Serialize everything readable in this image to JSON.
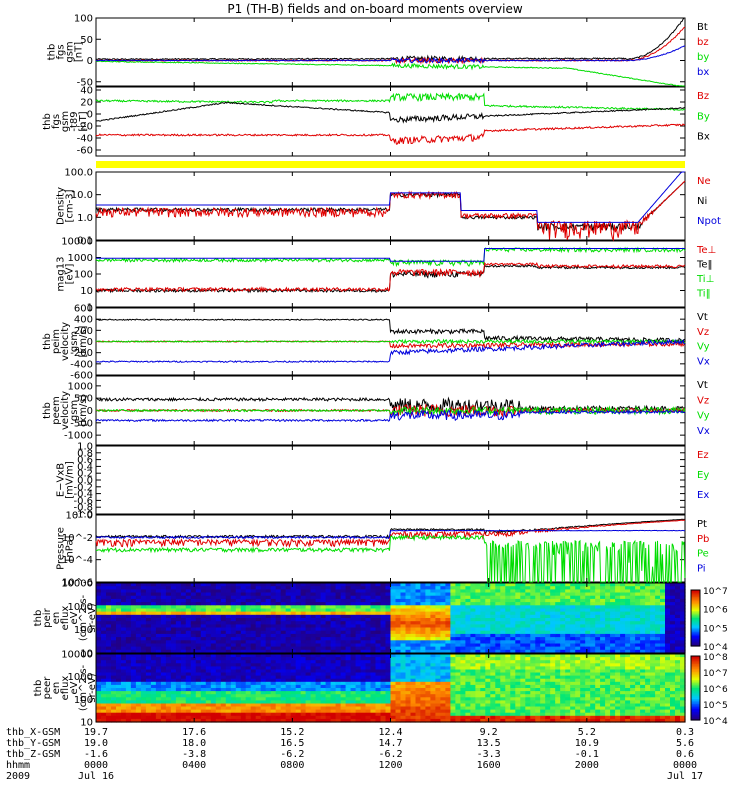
{
  "title": "P1 (TH-B) fields and on-board moments overview",
  "colors": {
    "black": "#000000",
    "red": "#e00000",
    "green": "#00dd00",
    "blue": "#0000dd",
    "yellow": "#ffff00"
  },
  "chart_data": [
    {
      "type": "line",
      "ylabel": [
        "thb",
        "fgs",
        "gsm",
        "[nT]"
      ],
      "ylim": [
        -60,
        100
      ],
      "ticks": [
        100,
        50,
        0,
        -50
      ],
      "legend": [
        {
          "name": "Bt",
          "color": "black"
        },
        {
          "name": "bz",
          "color": "red"
        },
        {
          "name": "by",
          "color": "green"
        },
        {
          "name": "bx",
          "color": "blue"
        }
      ]
    },
    {
      "type": "line",
      "ylabel": [
        "thb",
        "fgs",
        "gsm",
        "-t89",
        "[nT]"
      ],
      "ylim": [
        -70,
        45
      ],
      "ticks": [
        40,
        20,
        0,
        -20,
        -40,
        -60
      ],
      "legend": [
        {
          "name": "Bz",
          "color": "red"
        },
        {
          "name": "By",
          "color": "green"
        },
        {
          "name": "Bx",
          "color": "black"
        }
      ]
    },
    {
      "type": "line",
      "ylabel": [
        "Density",
        "[cm-3]"
      ],
      "ylim": [
        0.1,
        100
      ],
      "log": true,
      "ticks": [
        "100.0",
        "10.0",
        "1.0",
        "0.1"
      ],
      "legend": [
        {
          "name": "Ne",
          "color": "red"
        },
        {
          "name": "Ni",
          "color": "black"
        },
        {
          "name": "Npot",
          "color": "blue"
        }
      ]
    },
    {
      "type": "line",
      "ylabel": [
        "mag13",
        "[eV]"
      ],
      "ylim": [
        1,
        10000
      ],
      "log": true,
      "ticks": [
        "10000",
        "1000",
        "100",
        "10",
        "1"
      ],
      "legend": [
        {
          "name": "Te⊥",
          "color": "red"
        },
        {
          "name": "Te‖",
          "color": "black"
        },
        {
          "name": "Ti⊥",
          "color": "green"
        },
        {
          "name": "Ti‖",
          "color": "green"
        }
      ]
    },
    {
      "type": "line",
      "ylabel": [
        "thb",
        "peim",
        "velocity",
        "gsm",
        "[km/s]"
      ],
      "ylim": [
        -600,
        600
      ],
      "ticks": [
        600,
        400,
        200,
        0,
        -200,
        -400,
        -600
      ],
      "legend": [
        {
          "name": "Vt",
          "color": "black"
        },
        {
          "name": "Vz",
          "color": "red"
        },
        {
          "name": "Vy",
          "color": "green"
        },
        {
          "name": "Vx",
          "color": "blue"
        }
      ]
    },
    {
      "type": "line",
      "ylabel": [
        "thb",
        "peem",
        "velocity",
        "gsm",
        "[km/s]"
      ],
      "ylim": [
        -1400,
        1400
      ],
      "ticks": [
        1000,
        500,
        0,
        -500,
        -1000
      ],
      "legend": [
        {
          "name": "Vt",
          "color": "black"
        },
        {
          "name": "Vz",
          "color": "red"
        },
        {
          "name": "Vy",
          "color": "green"
        },
        {
          "name": "Vx",
          "color": "blue"
        }
      ]
    },
    {
      "type": "line",
      "ylabel": [
        "E−VxB",
        "[mV/m]"
      ],
      "ylim": [
        -1,
        1
      ],
      "ticks": [
        "1.0",
        "0.8",
        "0.6",
        "0.4",
        "0.2",
        "0.0",
        "-0.2",
        "-0.4",
        "-0.6",
        "-0.8",
        "-1.0"
      ],
      "legend": [
        {
          "name": "Ez",
          "color": "red"
        },
        {
          "name": "Ey",
          "color": "green"
        },
        {
          "name": "Ex",
          "color": "blue"
        }
      ]
    },
    {
      "type": "line",
      "ylabel": [
        "Pressure",
        "[nPa]"
      ],
      "ylim": [
        1e-06,
        1
      ],
      "log": true,
      "ticks": [
        "10^0",
        "10^-2",
        "10^-4",
        "10^-6"
      ],
      "legend": [
        {
          "name": "Pt",
          "color": "black"
        },
        {
          "name": "Pb",
          "color": "red"
        },
        {
          "name": "Pe",
          "color": "green"
        },
        {
          "name": "Pi",
          "color": "blue"
        }
      ]
    },
    {
      "type": "heatmap",
      "ylabel": [
        "thb",
        "peir",
        "en",
        "eflux",
        "eV",
        "(cm^2-s-",
        "sr-eV)"
      ],
      "ylim": [
        5,
        20000
      ],
      "log": true,
      "ticks": [
        "10000",
        "1000",
        "100",
        "10"
      ],
      "colorbar": [
        "10^7",
        "10^6",
        "10^5",
        "10^4"
      ]
    },
    {
      "type": "heatmap",
      "ylabel": [
        "thb",
        "peer",
        "en",
        "eflux",
        "eV",
        "(cm^2-s-",
        "sr-eV)"
      ],
      "ylim": [
        5,
        20000
      ],
      "log": true,
      "ticks": [
        "10000",
        "1000",
        "100",
        "10"
      ],
      "colorbar": [
        "10^8",
        "10^7",
        "10^6",
        "10^5",
        "10^4"
      ]
    }
  ],
  "x_axis": {
    "labels": [
      "thb_X-GSM",
      "thb_Y-GSM",
      "thb_Z-GSM",
      "hhmm",
      "2009"
    ],
    "columns": [
      {
        "X": "19.7",
        "Y": "19.0",
        "Z": "-1.6",
        "time": "0000",
        "date": "Jul 16"
      },
      {
        "X": "17.6",
        "Y": "18.0",
        "Z": "-3.8",
        "time": "0400",
        "date": ""
      },
      {
        "X": "15.2",
        "Y": "16.5",
        "Z": "-6.2",
        "time": "0800",
        "date": ""
      },
      {
        "X": "12.4",
        "Y": "14.7",
        "Z": "-6.2",
        "time": "1200",
        "date": ""
      },
      {
        "X": "9.2",
        "Y": "13.5",
        "Z": "-3.3",
        "time": "1600",
        "date": ""
      },
      {
        "X": "5.2",
        "Y": "10.9",
        "Z": "-0.1",
        "time": "2000",
        "date": ""
      },
      {
        "X": "0.3",
        "Y": "5.6",
        "Z": "0.6",
        "time": "0000",
        "date": "Jul 17"
      }
    ]
  }
}
